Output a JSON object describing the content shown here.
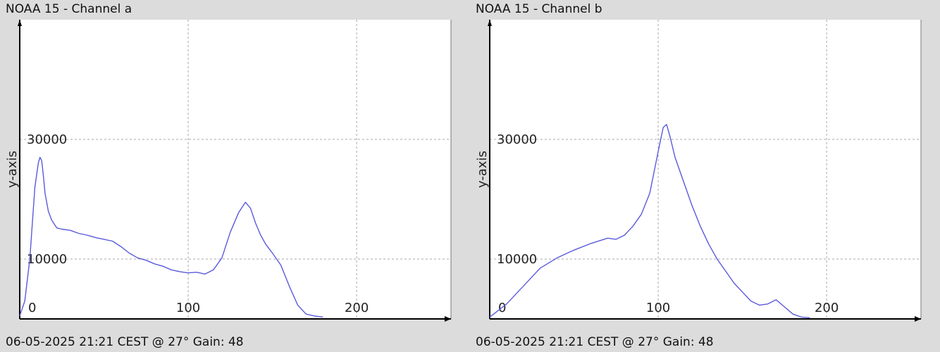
{
  "panels": [
    {
      "title": "NOAA 15 - Channel a",
      "footer": "06-05-2025 21:21 CEST @ 27° Gain: 48"
    },
    {
      "title": "NOAA 15 - Channel b",
      "footer": "06-05-2025 21:21 CEST @ 27° Gain: 48"
    }
  ],
  "colors": {
    "line": "#5a5adc",
    "grid": "#a8a8a8",
    "axis": "#000000",
    "plot_bg": "#ffffff",
    "page_bg": "#dcdcdc"
  },
  "chart_data": [
    {
      "type": "line",
      "title": "NOAA 15 - Channel a",
      "xlabel": "",
      "ylabel": "y-axis",
      "xlim": [
        0,
        256
      ],
      "ylim": [
        0,
        50000
      ],
      "x_ticks": [
        0,
        100,
        200
      ],
      "y_ticks": [
        10000,
        30000
      ],
      "grid": true,
      "series": [
        {
          "x": [
            0,
            3,
            6,
            9,
            11,
            12,
            13,
            14,
            15,
            17,
            19,
            22,
            25,
            30,
            35,
            40,
            45,
            50,
            55,
            60,
            65,
            70,
            75,
            80,
            85,
            90,
            95,
            100,
            105,
            110,
            115,
            120,
            125,
            130,
            134,
            137,
            140,
            143,
            146,
            150,
            155,
            160,
            165,
            170,
            175,
            180
          ],
          "y": [
            500,
            3000,
            10000,
            22000,
            26000,
            27000,
            26500,
            24000,
            21000,
            18000,
            16500,
            15200,
            15000,
            14800,
            14300,
            14000,
            13600,
            13300,
            13000,
            12100,
            11000,
            10200,
            9800,
            9200,
            8800,
            8200,
            7900,
            7700,
            7800,
            7500,
            8200,
            10200,
            14500,
            17800,
            19500,
            18500,
            16000,
            14000,
            12500,
            11000,
            9000,
            5500,
            2300,
            800,
            500,
            300
          ]
        }
      ]
    },
    {
      "type": "line",
      "title": "NOAA 15 - Channel b",
      "xlabel": "",
      "ylabel": "y-axis",
      "xlim": [
        0,
        256
      ],
      "ylim": [
        0,
        50000
      ],
      "x_ticks": [
        0,
        100,
        200
      ],
      "y_ticks": [
        10000,
        30000
      ],
      "grid": true,
      "series": [
        {
          "x": [
            0,
            10,
            20,
            30,
            40,
            50,
            60,
            70,
            75,
            80,
            85,
            90,
            95,
            100,
            103,
            105,
            107,
            110,
            115,
            120,
            125,
            130,
            135,
            140,
            145,
            150,
            155,
            160,
            165,
            170,
            175,
            180,
            185,
            190
          ],
          "y": [
            300,
            2500,
            5500,
            8500,
            10200,
            11500,
            12600,
            13500,
            13300,
            14000,
            15500,
            17500,
            21000,
            28000,
            32000,
            32500,
            30500,
            27000,
            23000,
            19000,
            15500,
            12500,
            10000,
            8000,
            6000,
            4500,
            3000,
            2300,
            2500,
            3200,
            2000,
            800,
            300,
            200
          ]
        }
      ]
    }
  ]
}
